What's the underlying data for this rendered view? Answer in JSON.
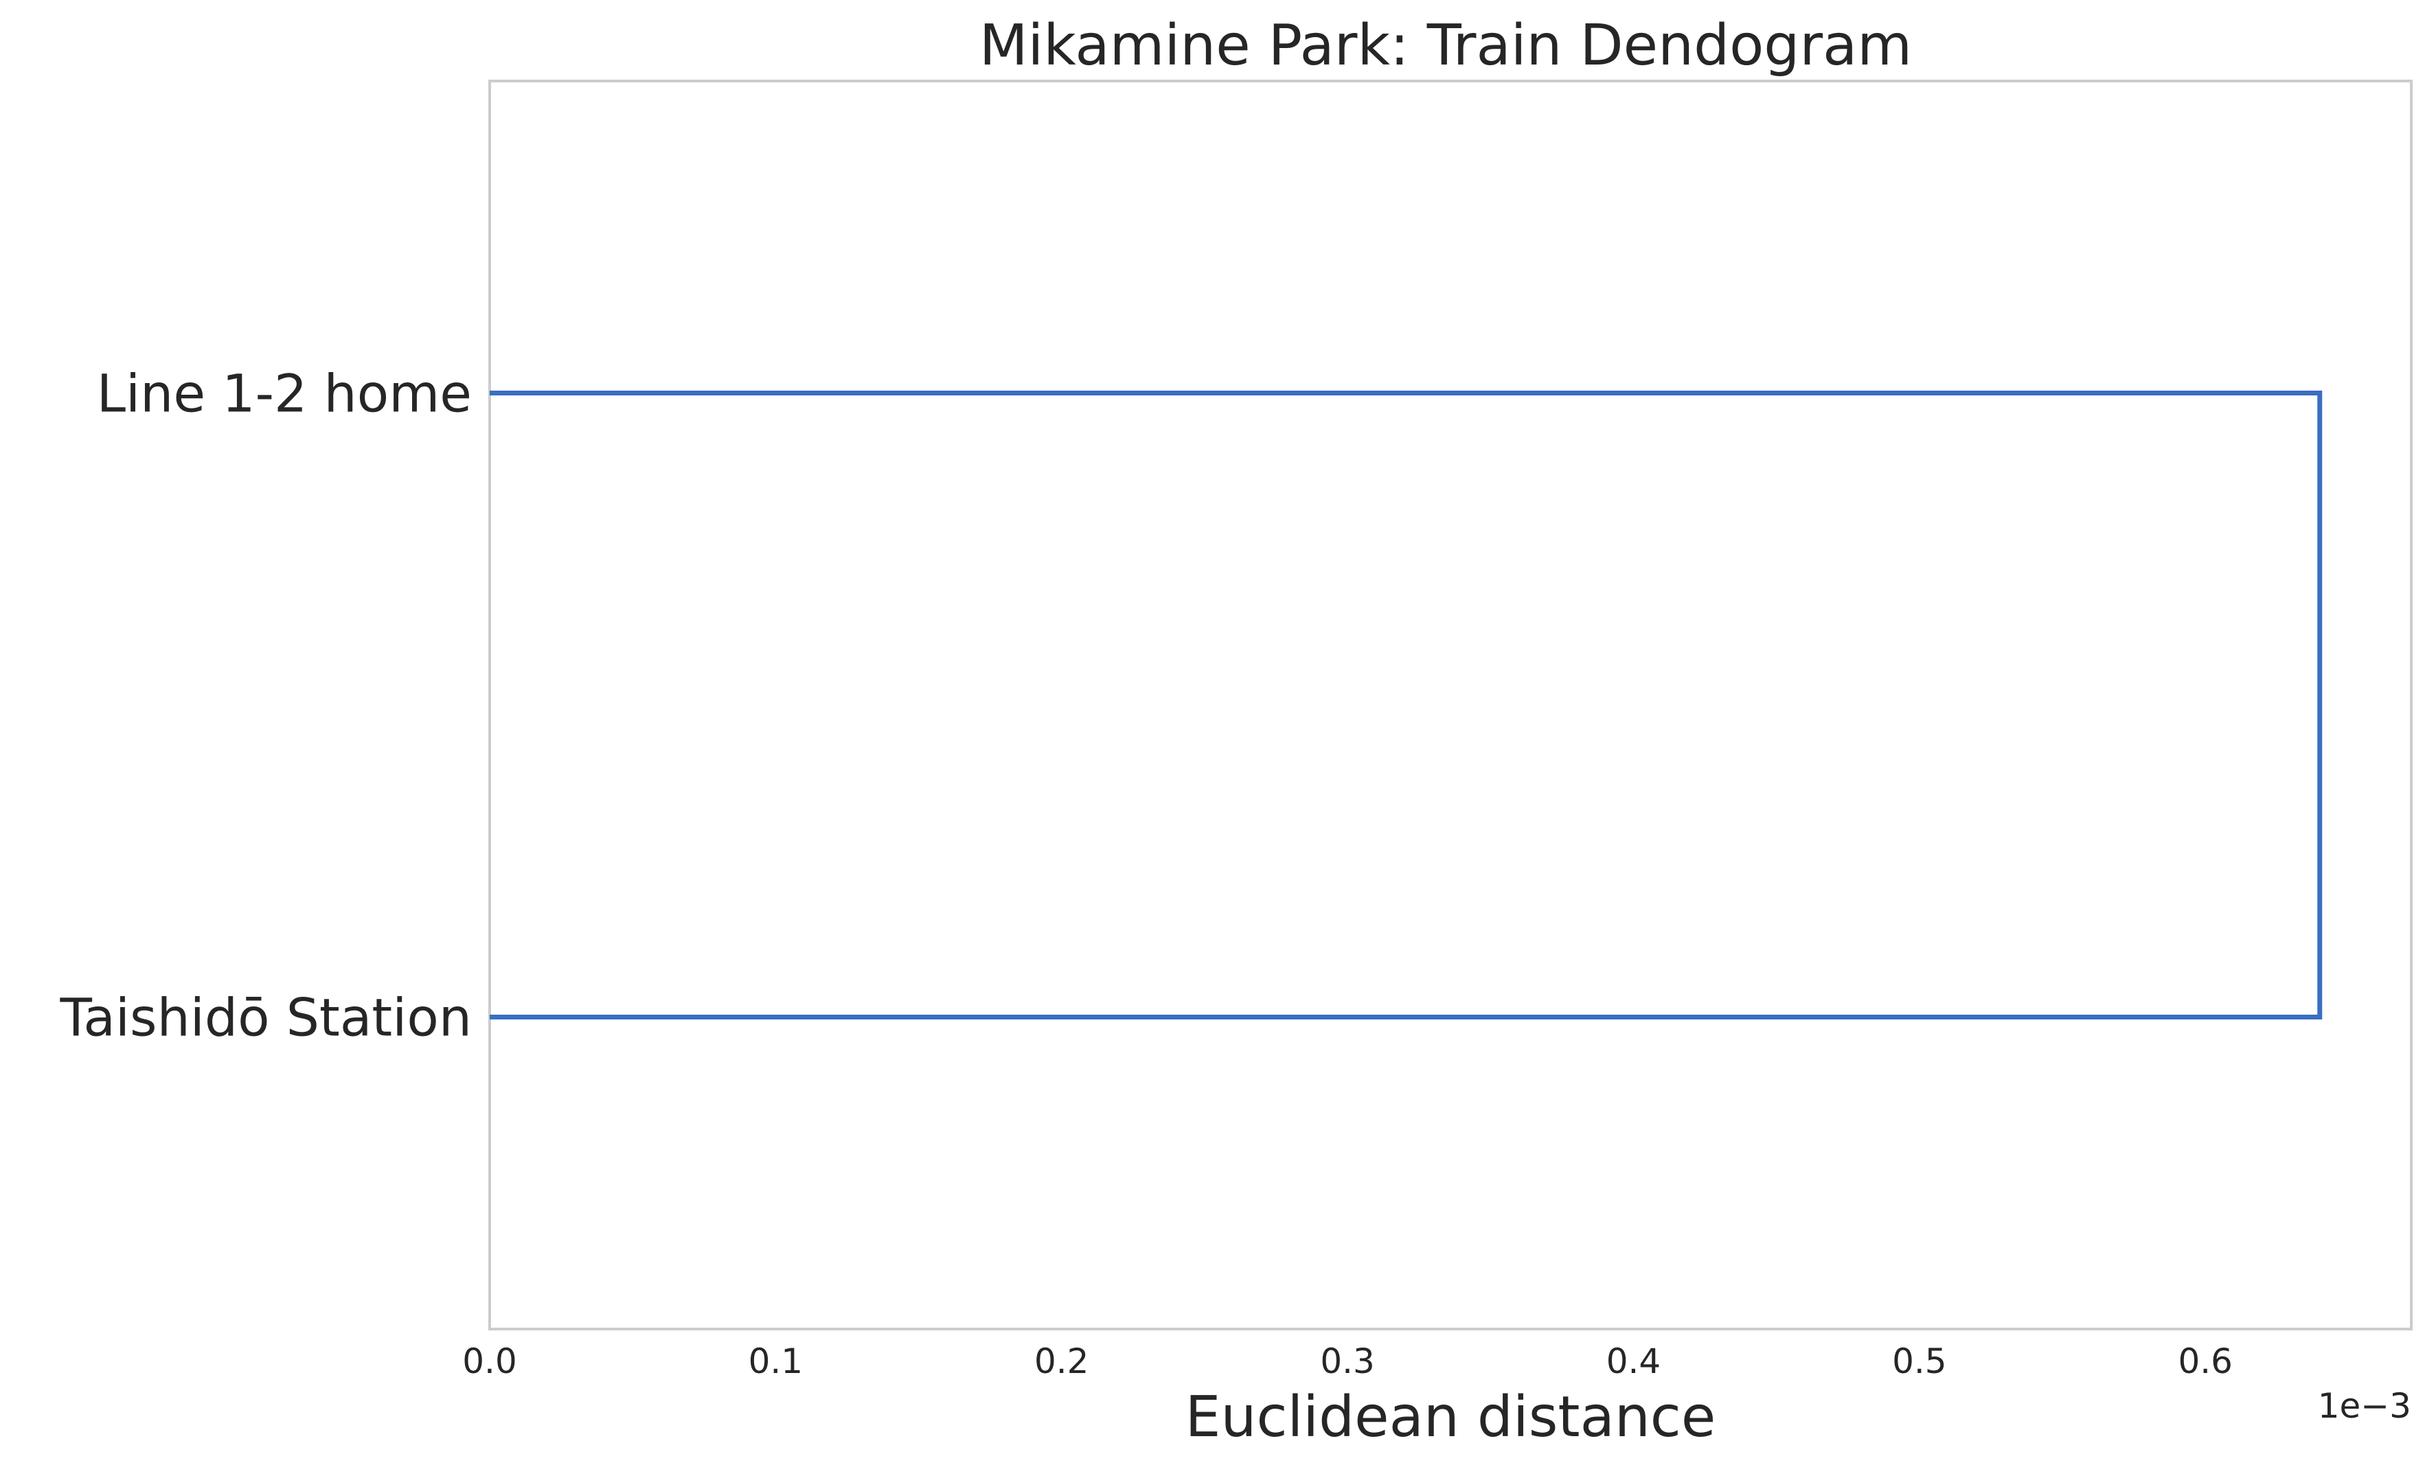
{
  "chart_data": {
    "type": "dendrogram",
    "orientation": "horizontal",
    "title": "Mikamine Park: Train Dendogram",
    "xlabel": "Euclidean distance",
    "x_offset_label": "1e−3",
    "xlim": [
      0,
      0.000672
    ],
    "x_ticks": [
      0,
      0.0001,
      0.0002,
      0.0003,
      0.0004,
      0.0005,
      0.0006
    ],
    "x_tick_labels": [
      "0.0",
      "0.1",
      "0.2",
      "0.3",
      "0.4",
      "0.5",
      "0.6"
    ],
    "leaves": [
      "Line 1-2 home",
      "Taishidō Station"
    ],
    "links": [
      {
        "left": "Line 1-2 home",
        "right": "Taishidō Station",
        "distance": 0.00064
      }
    ],
    "grid": false,
    "colors": {
      "link": "#3a6ec1",
      "spine": "#cccccc",
      "text": "#262626"
    }
  }
}
